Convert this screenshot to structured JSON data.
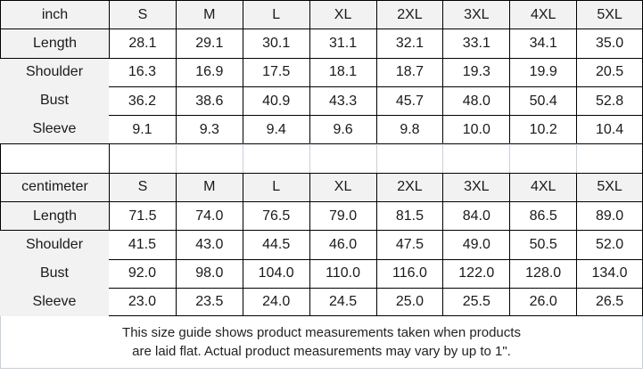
{
  "colors": {
    "grid_black": "#000000",
    "grid_light": "#c6d0dc",
    "header_bg": "#f2f2f2",
    "text": "#1a1a1a"
  },
  "sizes": [
    "S",
    "M",
    "L",
    "XL",
    "2XL",
    "3XL",
    "4XL",
    "5XL"
  ],
  "inch_table": {
    "unit_label": "inch",
    "rows": [
      {
        "label": "Length",
        "values": [
          "28.1",
          "29.1",
          "30.1",
          "31.1",
          "32.1",
          "33.1",
          "34.1",
          "35.0"
        ]
      },
      {
        "label": "Shoulder",
        "values": [
          "16.3",
          "16.9",
          "17.5",
          "18.1",
          "18.7",
          "19.3",
          "19.9",
          "20.5"
        ]
      },
      {
        "label": "Bust",
        "values": [
          "36.2",
          "38.6",
          "40.9",
          "43.3",
          "45.7",
          "48.0",
          "50.4",
          "52.8"
        ]
      },
      {
        "label": "Sleeve",
        "values": [
          "9.1",
          "9.3",
          "9.4",
          "9.6",
          "9.8",
          "10.0",
          "10.2",
          "10.4"
        ]
      }
    ]
  },
  "cm_table": {
    "unit_label": "centimeter",
    "rows": [
      {
        "label": "Length",
        "values": [
          "71.5",
          "74.0",
          "76.5",
          "79.0",
          "81.5",
          "84.0",
          "86.5",
          "89.0"
        ]
      },
      {
        "label": "Shoulder",
        "values": [
          "41.5",
          "43.0",
          "44.5",
          "46.0",
          "47.5",
          "49.0",
          "50.5",
          "52.0"
        ]
      },
      {
        "label": "Bust",
        "values": [
          "92.0",
          "98.0",
          "104.0",
          "110.0",
          "116.0",
          "122.0",
          "128.0",
          "134.0"
        ]
      },
      {
        "label": "Sleeve",
        "values": [
          "23.0",
          "23.5",
          "24.0",
          "24.5",
          "25.0",
          "25.5",
          "26.0",
          "26.5"
        ]
      }
    ]
  },
  "footer": {
    "line1": "This size guide shows product measurements taken when products",
    "line2": "are laid flat. Actual product measurements may vary by up to 1\"."
  }
}
